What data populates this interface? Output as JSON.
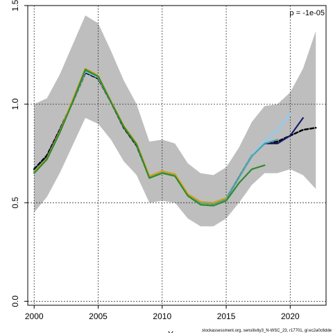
{
  "chart_data": {
    "type": "line",
    "title": "",
    "xlabel": "Y",
    "ylabel": "",
    "xlim": [
      1999.5,
      2022.8
    ],
    "ylim": [
      -0.02,
      1.5
    ],
    "xticks": [
      2000,
      2005,
      2010,
      2015,
      2020
    ],
    "yticks": [
      0.0,
      0.5,
      1.0,
      1.5
    ],
    "ytick_labels": [
      "0.0",
      "0.5",
      "1.0",
      "1.5"
    ],
    "grid": true,
    "annotation": "ρ = -1e-05",
    "footer": "stockassessment.org, sensitivity3_N-WSC_23, r17701, gi:ec2a0c6dde",
    "band": {
      "x": [
        2000,
        2001,
        2002,
        2003,
        2004,
        2005,
        2006,
        2007,
        2008,
        2009,
        2010,
        2011,
        2012,
        2013,
        2014,
        2015,
        2016,
        2017,
        2018,
        2019,
        2020,
        2021,
        2022
      ],
      "upper": [
        1.0,
        1.03,
        1.15,
        1.3,
        1.45,
        1.41,
        1.27,
        1.12,
        1.0,
        0.81,
        0.82,
        0.8,
        0.7,
        0.65,
        0.64,
        0.68,
        0.78,
        0.91,
        0.99,
        1.0,
        1.06,
        1.18,
        1.37
      ],
      "lower": [
        0.45,
        0.53,
        0.65,
        0.79,
        0.93,
        0.9,
        0.82,
        0.71,
        0.64,
        0.5,
        0.51,
        0.5,
        0.42,
        0.38,
        0.38,
        0.42,
        0.5,
        0.59,
        0.65,
        0.65,
        0.67,
        0.64,
        0.57
      ]
    },
    "series": [
      {
        "color": "#000000",
        "dashed": true,
        "x": [
          2000,
          2001,
          2002,
          2003,
          2004,
          2005,
          2006,
          2007,
          2008,
          2009,
          2010,
          2011,
          2012,
          2013,
          2014,
          2015,
          2016,
          2017,
          2018,
          2019,
          2020,
          2021,
          2022
        ],
        "values": [
          0.67,
          0.74,
          0.87,
          1.01,
          1.16,
          1.13,
          1.01,
          0.88,
          0.79,
          0.63,
          0.655,
          0.64,
          0.54,
          0.5,
          0.495,
          0.52,
          0.63,
          0.74,
          0.8,
          0.81,
          0.84,
          0.87,
          0.88
        ]
      },
      {
        "color": "#1a1a6e",
        "dashed": false,
        "x": [
          2000,
          2001,
          2002,
          2003,
          2004,
          2005,
          2006,
          2007,
          2008,
          2009,
          2010,
          2011,
          2012,
          2013,
          2014,
          2015,
          2016,
          2017,
          2018,
          2019,
          2020,
          2021
        ],
        "values": [
          0.66,
          0.73,
          0.865,
          1.01,
          1.165,
          1.135,
          1.01,
          0.885,
          0.795,
          0.63,
          0.655,
          0.64,
          0.54,
          0.5,
          0.495,
          0.52,
          0.63,
          0.74,
          0.8,
          0.8,
          0.84,
          0.93
        ]
      },
      {
        "color": "#87cefa",
        "dashed": false,
        "x": [
          2000,
          2001,
          2002,
          2003,
          2004,
          2005,
          2006,
          2007,
          2008,
          2009,
          2010,
          2011,
          2012,
          2013,
          2014,
          2015,
          2016,
          2017,
          2018,
          2019,
          2020
        ],
        "values": [
          0.66,
          0.725,
          0.86,
          1.01,
          1.165,
          1.135,
          1.01,
          0.885,
          0.795,
          0.63,
          0.655,
          0.64,
          0.54,
          0.5,
          0.495,
          0.52,
          0.63,
          0.74,
          0.81,
          0.87,
          0.95
        ]
      },
      {
        "color": "#4aa3a3",
        "dashed": false,
        "x": [
          2000,
          2001,
          2002,
          2003,
          2004,
          2005,
          2006,
          2007,
          2008,
          2009,
          2010,
          2011,
          2012,
          2013,
          2014,
          2015,
          2016,
          2017,
          2018,
          2019
        ],
        "values": [
          0.66,
          0.725,
          0.86,
          1.01,
          1.17,
          1.14,
          1.01,
          0.885,
          0.795,
          0.63,
          0.655,
          0.64,
          0.54,
          0.5,
          0.495,
          0.52,
          0.63,
          0.735,
          0.8,
          0.82
        ]
      },
      {
        "color": "#d4a017",
        "dashed": false,
        "x": [
          2000,
          2001,
          2002,
          2003,
          2004,
          2005,
          2006,
          2007,
          2008,
          2009,
          2010,
          2011,
          2012,
          2013,
          2014,
          2015
        ],
        "values": [
          0.655,
          0.725,
          0.86,
          1.02,
          1.18,
          1.145,
          1.015,
          0.89,
          0.8,
          0.635,
          0.66,
          0.645,
          0.545,
          0.505,
          0.5,
          0.525
        ]
      },
      {
        "color": "#2e8b2e",
        "dashed": false,
        "x": [
          2000,
          2001,
          2002,
          2003,
          2004,
          2005,
          2006,
          2007,
          2008,
          2009,
          2010,
          2011,
          2012,
          2013,
          2014,
          2015,
          2016,
          2017,
          2018
        ],
        "values": [
          0.65,
          0.72,
          0.855,
          1.01,
          1.175,
          1.14,
          1.01,
          0.885,
          0.795,
          0.625,
          0.65,
          0.635,
          0.535,
          0.49,
          0.485,
          0.51,
          0.6,
          0.67,
          0.69
        ]
      }
    ]
  }
}
